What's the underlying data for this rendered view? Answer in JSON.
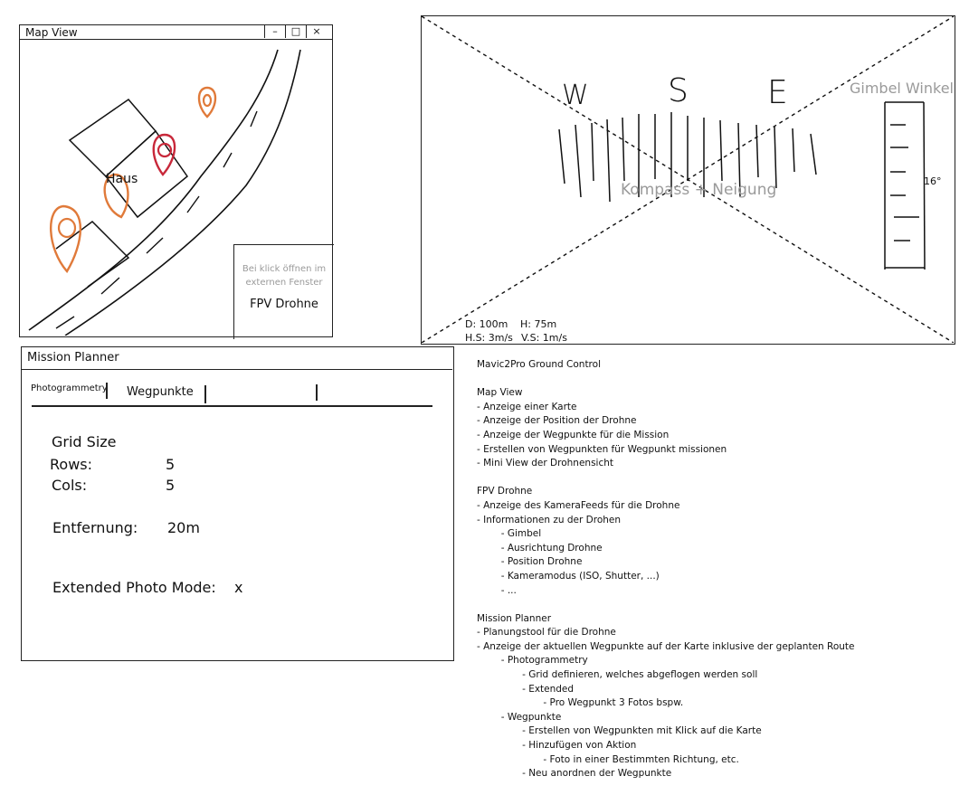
{
  "map_view": {
    "title": "Map View",
    "window_controls": {
      "minimize": "–",
      "maximize": "□",
      "close": "×"
    },
    "house_label": "Haus",
    "fpv_hint": "Bei klick öffnen im externen Fenster",
    "fpv_label": "FPV Drohne",
    "marker_colors": {
      "default": "#e07a3a",
      "active": "#c8283a"
    }
  },
  "fpv_view": {
    "compass_letters": [
      "W",
      "S",
      "E"
    ],
    "compass_label": "Kompass + Neigung",
    "gimbel_label": "Gimbel Winkel",
    "gimbel_angle": "16°",
    "telemetry": {
      "distance": "D: 100m",
      "height": "H: 75m",
      "h_speed": "H.S: 3m/s",
      "v_speed": "V.S: 1m/s"
    }
  },
  "mission_planner": {
    "title": "Mission Planner",
    "tabs": [
      "Photogrammetry",
      "Wegpunkte"
    ],
    "grid_size_label": "Grid Size",
    "rows_label": "Rows:",
    "rows_value": "5",
    "cols_label": "Cols:",
    "cols_value": "5",
    "distance_label": "Entfernung:",
    "distance_value": "20m",
    "extended_label": "Extended Photo Mode:",
    "extended_value": "x"
  },
  "notes": [
    "Mavic2Pro Ground Control",
    "",
    "Map View",
    "- Anzeige einer Karte",
    "- Anzeige der Position der Drohne",
    "- Anzeige der Wegpunkte für die Mission",
    "- Erstellen von Wegpunkten für Wegpunkt missionen",
    "- Mini View der Drohnensicht",
    "",
    "FPV Drohne",
    "- Anzeige des KameraFeeds für die Drohne",
    "- Informationen zu der Drohen",
    "        - Gimbel",
    "        - Ausrichtung Drohne",
    "        - Position Drohne",
    "        - Kameramodus (ISO, Shutter, ...)",
    "        - ...",
    "",
    "Mission Planner",
    "- Planungstool für die Drohne",
    "- Anzeige der aktuellen Wegpunkte auf der Karte inklusive der geplanten Route",
    "        - Photogrammetry",
    "               - Grid definieren, welches abgeflogen werden soll",
    "               - Extended",
    "                      - Pro Wegpunkt 3 Fotos bspw.",
    "        - Wegpunkte",
    "               - Erstellen von Wegpunkten mit Klick auf die Karte",
    "               - Hinzufügen von Aktion",
    "                      - Foto in einer Bestimmten Richtung, etc.",
    "               - Neu anordnen der Wegpunkte"
  ]
}
